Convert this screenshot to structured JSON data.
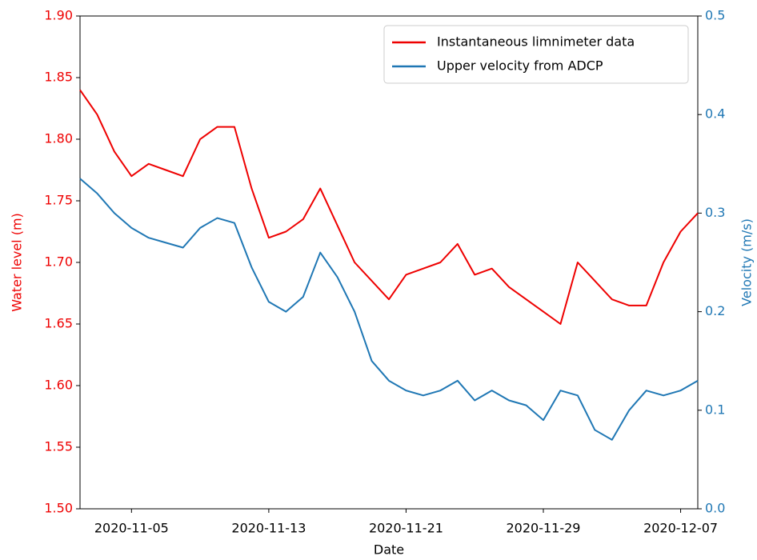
{
  "chart_data": {
    "type": "line",
    "x_label": "Date",
    "y_label": "Water level (m)",
    "y2_label": "Velocity (m/s)",
    "x": [
      "2020-11-02",
      "2020-11-03",
      "2020-11-04",
      "2020-11-05",
      "2020-11-06",
      "2020-11-07",
      "2020-11-08",
      "2020-11-09",
      "2020-11-10",
      "2020-11-11",
      "2020-11-12",
      "2020-11-13",
      "2020-11-14",
      "2020-11-15",
      "2020-11-16",
      "2020-11-17",
      "2020-11-18",
      "2020-11-19",
      "2020-11-20",
      "2020-11-21",
      "2020-11-22",
      "2020-11-23",
      "2020-11-24",
      "2020-11-25",
      "2020-11-26",
      "2020-11-27",
      "2020-11-28",
      "2020-11-29",
      "2020-11-30",
      "2020-12-01",
      "2020-12-02",
      "2020-12-03",
      "2020-12-04",
      "2020-12-05",
      "2020-12-06",
      "2020-12-07",
      "2020-12-08"
    ],
    "series": [
      {
        "name": "Instantaneous limnimeter data",
        "color": "#ee0000",
        "axis": "y",
        "values": [
          1.84,
          1.82,
          1.79,
          1.77,
          1.78,
          1.775,
          1.77,
          1.8,
          1.81,
          1.81,
          1.76,
          1.72,
          1.725,
          1.735,
          1.76,
          1.73,
          1.7,
          1.685,
          1.67,
          1.69,
          1.695,
          1.7,
          1.715,
          1.69,
          1.695,
          1.68,
          1.67,
          1.66,
          1.65,
          1.7,
          1.685,
          1.67,
          1.665,
          1.665,
          1.7,
          1.725,
          1.74
        ]
      },
      {
        "name": "Upper velocity from ADCP",
        "color": "#1f77b4",
        "axis": "y2",
        "values": [
          0.335,
          0.32,
          0.3,
          0.285,
          0.275,
          0.27,
          0.265,
          0.285,
          0.295,
          0.29,
          0.245,
          0.21,
          0.2,
          0.215,
          0.26,
          0.235,
          0.2,
          0.15,
          0.13,
          0.12,
          0.115,
          0.12,
          0.13,
          0.11,
          0.12,
          0.11,
          0.105,
          0.09,
          0.12,
          0.115,
          0.08,
          0.07,
          0.1,
          0.12,
          0.115,
          0.12,
          0.13
        ]
      }
    ],
    "xlim": [
      "2020-11-02",
      "2020-12-08"
    ],
    "xticks": [
      "2020-11-05",
      "2020-11-13",
      "2020-11-21",
      "2020-11-29",
      "2020-12-07"
    ],
    "ylim": [
      1.5,
      1.9
    ],
    "yticks": [
      {
        "value": 1.5,
        "label": "1.50"
      },
      1.55,
      {
        "value": 1.6,
        "label": "1.60"
      },
      1.65,
      {
        "value": 1.7,
        "label": "1.70"
      },
      1.75,
      {
        "value": 1.8,
        "label": "1.80"
      },
      1.85,
      {
        "value": 1.9,
        "label": "1.90"
      }
    ],
    "y2lim": [
      0,
      0.5
    ],
    "y2ticks": [
      {
        "value": 0,
        "label": "0.0"
      },
      0.1,
      0.2,
      0.3,
      0.4,
      0.5
    ],
    "legend": "upper right",
    "grid": false
  }
}
